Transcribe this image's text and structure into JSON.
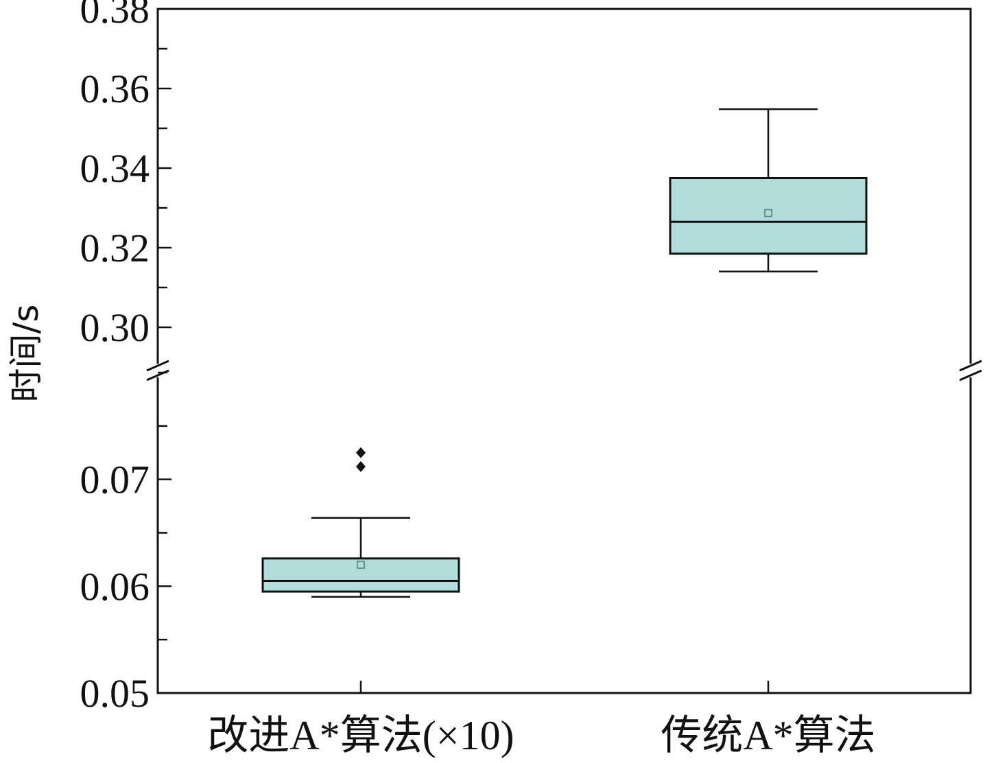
{
  "chart_data": {
    "type": "boxplot",
    "ylabel": "时间/s",
    "categories": [
      "改进A*算法(×10)",
      "传统A*算法"
    ],
    "axis_break": true,
    "y_segments": [
      {
        "range": [
          0.05,
          0.08
        ],
        "major_ticks": [
          0.05,
          0.06,
          0.07
        ],
        "tick_labels": [
          "0.05",
          "0.06",
          "0.07"
        ]
      },
      {
        "range": [
          0.29,
          0.38
        ],
        "major_ticks": [
          0.3,
          0.32,
          0.34,
          0.36,
          0.38
        ],
        "tick_labels": [
          "0.30",
          "0.32",
          "0.34",
          "0.36",
          "0.38"
        ]
      }
    ],
    "boxes": [
      {
        "category": "改进A*算法(×10)",
        "whisker_low": 0.059,
        "q1": 0.0595,
        "median": 0.0605,
        "q3": 0.0626,
        "whisker_high": 0.0664,
        "mean": 0.062,
        "outliers": [
          0.0712,
          0.0725
        ]
      },
      {
        "category": "传统A*算法",
        "whisker_low": 0.314,
        "q1": 0.3185,
        "median": 0.3265,
        "q3": 0.3375,
        "whisker_high": 0.3548,
        "mean": 0.3287,
        "outliers": []
      }
    ],
    "colors": {
      "box_fill": "#b0dcda",
      "mean_marker": "#5a8d8b",
      "line": "#111111"
    },
    "grid": false,
    "legend": "none"
  }
}
